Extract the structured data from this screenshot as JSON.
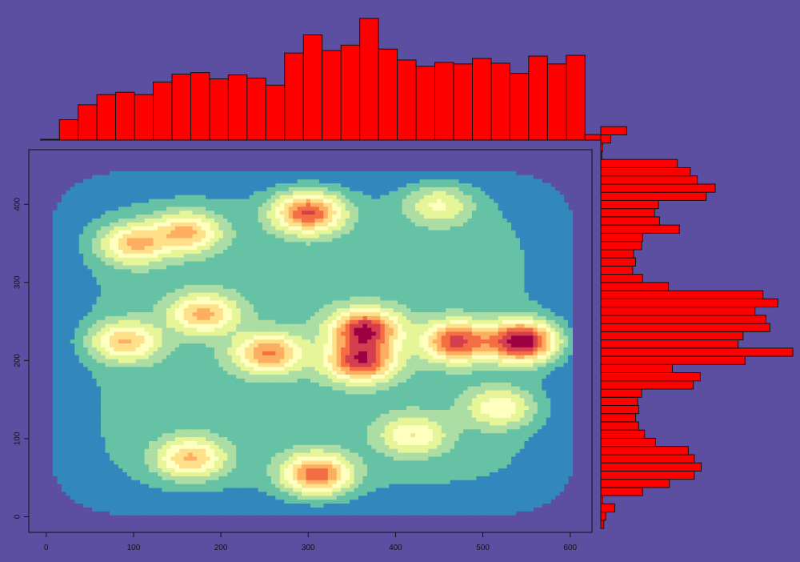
{
  "chart_data": [
    {
      "type": "heatmap",
      "title": "",
      "xlabel": "",
      "ylabel": "",
      "xlim": [
        -20,
        625
      ],
      "ylim": [
        -20,
        470
      ],
      "x_ticks": [
        0,
        100,
        200,
        300,
        400,
        500,
        600
      ],
      "y_ticks": [
        0,
        100,
        200,
        300,
        400
      ],
      "grid": false,
      "colormap": [
        "#5E4FA2",
        "#3288BD",
        "#66C2A5",
        "#ABDDA4",
        "#E6F598",
        "#FFFFBF",
        "#FEE08B",
        "#FDAE61",
        "#F46D43",
        "#D53E4F",
        "#9E0142"
      ],
      "density_extent": {
        "x": [
          10,
          600
        ],
        "y": [
          5,
          440
        ]
      },
      "density_peaks": [
        {
          "x": 545,
          "y": 225,
          "intensity": 1.0
        },
        {
          "x": 365,
          "y": 240,
          "intensity": 0.85
        },
        {
          "x": 360,
          "y": 200,
          "intensity": 0.8
        },
        {
          "x": 470,
          "y": 225,
          "intensity": 0.75
        },
        {
          "x": 300,
          "y": 390,
          "intensity": 0.75
        },
        {
          "x": 310,
          "y": 55,
          "intensity": 0.7
        },
        {
          "x": 255,
          "y": 210,
          "intensity": 0.6
        },
        {
          "x": 160,
          "y": 365,
          "intensity": 0.5
        },
        {
          "x": 100,
          "y": 350,
          "intensity": 0.5
        },
        {
          "x": 180,
          "y": 260,
          "intensity": 0.5
        },
        {
          "x": 90,
          "y": 225,
          "intensity": 0.5
        },
        {
          "x": 165,
          "y": 75,
          "intensity": 0.5
        },
        {
          "x": 420,
          "y": 105,
          "intensity": 0.35
        },
        {
          "x": 520,
          "y": 140,
          "intensity": 0.35
        },
        {
          "x": 450,
          "y": 400,
          "intensity": 0.3
        }
      ]
    },
    {
      "type": "bar",
      "orientation": "vertical",
      "description_role": "marginal histogram of x",
      "bin_width": 21.5,
      "bin_start": -6.5,
      "values": [
        1,
        26,
        45,
        58,
        61,
        58,
        74,
        84,
        86,
        78,
        83,
        79,
        70,
        111,
        134,
        114,
        121,
        155,
        116,
        102,
        94,
        99,
        97,
        104,
        98,
        85,
        107,
        97,
        108,
        7
      ],
      "color": "#FF0000"
    },
    {
      "type": "bar",
      "orientation": "horizontal",
      "description_role": "marginal histogram of y",
      "bin_width": 10.5,
      "bin_start": -15,
      "values": [
        3,
        5,
        14,
        2,
        42,
        69,
        94,
        101,
        94,
        88,
        55,
        44,
        38,
        35,
        38,
        37,
        41,
        93,
        100,
        72,
        145,
        193,
        138,
        143,
        170,
        166,
        155,
        178,
        163,
        68,
        42,
        32,
        35,
        33,
        41,
        42,
        79,
        59,
        54,
        58,
        106,
        115,
        97,
        90,
        77,
        1,
        2,
        10,
        26
      ],
      "color": "#FF0000"
    }
  ]
}
